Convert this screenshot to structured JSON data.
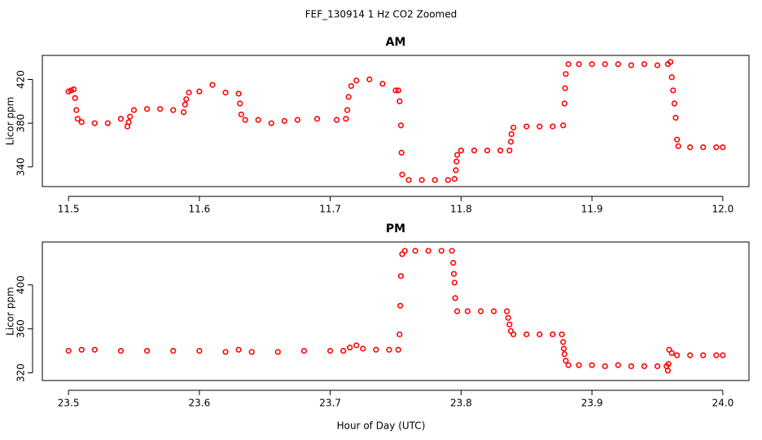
{
  "title": "FEF_130914  1 Hz CO2 Zoomed",
  "xlabel": "Hour of Day (UTC)",
  "chart_data": [
    {
      "type": "scatter",
      "title": "AM",
      "ylabel": "Licor ppm",
      "color": "#ff0000",
      "marker": "open-circle",
      "xlim": [
        11.48,
        12.02
      ],
      "ylim": [
        322,
        442
      ],
      "xticks": [
        11.5,
        11.6,
        11.7,
        11.8,
        11.9,
        {
          "value": 12,
          "label": "12.0"
        }
      ],
      "yticks": [
        340,
        380,
        420
      ],
      "x": [
        11.5,
        11.502,
        11.504,
        11.505,
        11.506,
        11.507,
        11.51,
        11.52,
        11.53,
        11.54,
        11.545,
        11.546,
        11.547,
        11.55,
        11.56,
        11.57,
        11.58,
        11.588,
        11.589,
        11.59,
        11.592,
        11.6,
        11.61,
        11.62,
        11.63,
        11.631,
        11.632,
        11.635,
        11.645,
        11.655,
        11.665,
        11.675,
        11.69,
        11.705,
        11.712,
        11.713,
        11.714,
        11.716,
        11.72,
        11.73,
        11.74,
        11.75,
        11.752,
        11.753,
        11.754,
        11.7545,
        11.755,
        11.76,
        11.77,
        11.78,
        11.79,
        11.795,
        11.796,
        11.7965,
        11.797,
        11.8,
        11.81,
        11.82,
        11.83,
        11.837,
        11.838,
        11.8385,
        11.84,
        11.85,
        11.86,
        11.87,
        11.878,
        11.879,
        11.8795,
        11.88,
        11.882,
        11.89,
        11.9,
        11.91,
        11.92,
        11.93,
        11.94,
        11.95,
        11.958,
        11.96,
        11.961,
        11.962,
        11.963,
        11.964,
        11.965,
        11.966,
        11.975,
        11.985,
        11.995,
        12.0
      ],
      "y": [
        409,
        410,
        411,
        403,
        392,
        384,
        381,
        380,
        380,
        384,
        377,
        381,
        386,
        392,
        393,
        393,
        392,
        390,
        397,
        402,
        408,
        409,
        415,
        408,
        407,
        398,
        388,
        383,
        383,
        380,
        382,
        383,
        384,
        383,
        384,
        392,
        404,
        414,
        419,
        420,
        416,
        410,
        410,
        400,
        378,
        353,
        333,
        328,
        328,
        328,
        328,
        329,
        337,
        345,
        351,
        355,
        355,
        355,
        355,
        355,
        363,
        370,
        376,
        377,
        377,
        377,
        378,
        398,
        412,
        425,
        434,
        434,
        434,
        434,
        434,
        433,
        434,
        433,
        434,
        436,
        422,
        410,
        398,
        385,
        365,
        359,
        358,
        358,
        358,
        358
      ]
    },
    {
      "type": "scatter",
      "title": "PM",
      "ylabel": "Licor ppm",
      "color": "#ff0000",
      "marker": "open-circle",
      "xlim": [
        23.48,
        24.02
      ],
      "ylim": [
        313,
        439
      ],
      "xticks": [
        23.5,
        23.6,
        23.7,
        23.8,
        23.9,
        {
          "value": 24,
          "label": "24.0"
        }
      ],
      "yticks": [
        320,
        360,
        400
      ],
      "x": [
        23.5,
        23.51,
        23.52,
        23.54,
        23.56,
        23.58,
        23.6,
        23.62,
        23.63,
        23.64,
        23.66,
        23.68,
        23.7,
        23.71,
        23.715,
        23.72,
        23.725,
        23.735,
        23.745,
        23.752,
        23.753,
        23.7535,
        23.754,
        23.755,
        23.757,
        23.765,
        23.775,
        23.785,
        23.793,
        23.794,
        23.7945,
        23.795,
        23.7955,
        23.797,
        23.805,
        23.815,
        23.825,
        23.835,
        23.836,
        23.837,
        23.838,
        23.84,
        23.85,
        23.86,
        23.87,
        23.877,
        23.878,
        23.8785,
        23.879,
        23.88,
        23.882,
        23.89,
        23.9,
        23.91,
        23.92,
        23.93,
        23.94,
        23.95,
        23.957,
        23.958,
        23.9585,
        23.959,
        23.961,
        23.965,
        23.975,
        23.985,
        23.995,
        24.0
      ],
      "y": [
        340,
        341,
        341,
        340,
        340,
        340,
        340,
        339,
        341,
        339,
        339,
        340,
        340,
        340,
        343,
        345,
        342,
        341,
        341,
        341,
        355,
        381,
        408,
        428,
        431,
        431,
        431,
        431,
        431,
        420,
        410,
        402,
        388,
        376,
        376,
        376,
        376,
        376,
        370,
        364,
        358,
        355,
        355,
        355,
        355,
        355,
        348,
        342,
        337,
        331,
        327,
        327,
        327,
        326,
        327,
        326,
        326,
        326,
        326,
        322,
        328,
        341,
        338,
        336,
        336,
        336,
        336,
        336
      ]
    }
  ]
}
